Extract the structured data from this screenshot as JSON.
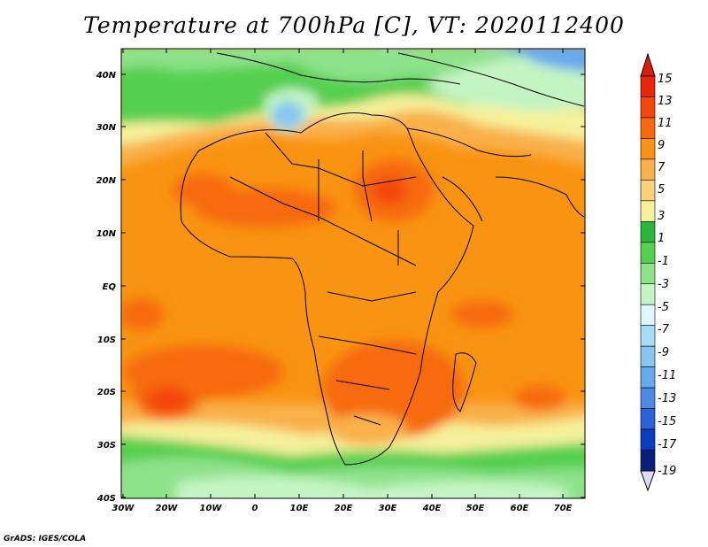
{
  "title": "Temperature at 700hPa [C], VT: 2020112400",
  "credit": "GrADS: IGES/COLA",
  "lat_labels": [
    "40N",
    "30N",
    "20N",
    "10N",
    "EQ",
    "10S",
    "20S",
    "30S",
    "40S"
  ],
  "lon_labels": [
    "30W",
    "20W",
    "10W",
    "0",
    "10E",
    "20E",
    "30E",
    "40E",
    "50E",
    "60E",
    "70E"
  ],
  "colorbar": {
    "labels": [
      "15",
      "13",
      "11",
      "9",
      "7",
      "5",
      "3",
      "1",
      "-1",
      "-3",
      "-5",
      "-7",
      "-9",
      "-11",
      "-13",
      "-15",
      "-17",
      "-19"
    ],
    "colors": [
      "#e8260a",
      "#f4460a",
      "#f76a0a",
      "#f99312",
      "#f9b04a",
      "#f9d17a",
      "#f5f09a",
      "#2eb63c",
      "#55cf50",
      "#8ee28a",
      "#c4f4c4",
      "#dff7fb",
      "#a6dcf4",
      "#86c6f0",
      "#66aaec",
      "#4c8ae2",
      "#2a62d8",
      "#0a3ec2",
      "#0a1f7a"
    ],
    "top_arrow_color": "#d81d0a",
    "bottom_arrow_color": "#dcdcfa"
  },
  "chart_data": {
    "type": "heatmap",
    "title": "Temperature at 700hPa [C], VT: 2020112400",
    "variable": "Temperature at 700hPa",
    "units": "C",
    "valid_time": "2020112400",
    "lon_range": [
      -30,
      75
    ],
    "lat_range": [
      -40,
      45
    ],
    "contour_levels": [
      -19,
      -17,
      -15,
      -13,
      -11,
      -9,
      -7,
      -5,
      -3,
      -1,
      1,
      3,
      5,
      7,
      9,
      11,
      13,
      15
    ]
  }
}
